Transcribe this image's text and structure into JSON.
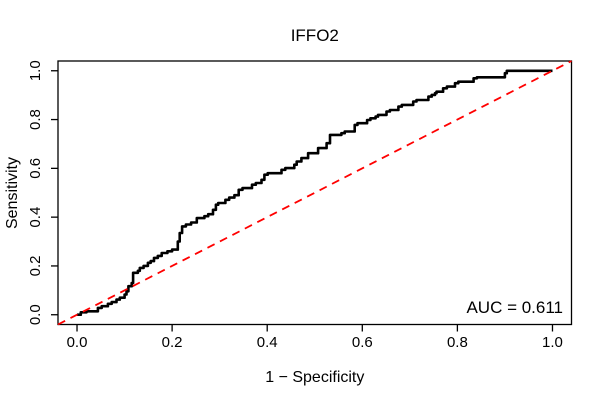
{
  "chart_data": {
    "type": "line",
    "title": "IFFO2",
    "xlabel": "1 − Specificity",
    "ylabel": "Sensitivity",
    "xlim": [
      -0.04,
      1.04
    ],
    "ylim": [
      -0.04,
      1.04
    ],
    "grid": false,
    "background": "#ffffff",
    "x_ticks": [
      0.0,
      0.2,
      0.4,
      0.6,
      0.8,
      1.0
    ],
    "y_ticks": [
      0.0,
      0.2,
      0.4,
      0.6,
      0.8,
      1.0
    ],
    "x_tick_labels": [
      "0.0",
      "0.2",
      "0.4",
      "0.6",
      "0.8",
      "1.0"
    ],
    "y_tick_labels": [
      "0.0",
      "0.2",
      "0.4",
      "0.6",
      "0.8",
      "1.0"
    ],
    "annotation": {
      "text": "AUC = 0.611",
      "x": 1.02,
      "y": 0.03,
      "align": "right"
    },
    "series": [
      {
        "name": "ROC curve",
        "color": "#000000",
        "style": "solid",
        "width": 2.6,
        "points": [
          [
            0.0,
            0.0
          ],
          [
            0.008,
            0.0
          ],
          [
            0.008,
            0.01
          ],
          [
            0.02,
            0.01
          ],
          [
            0.02,
            0.014
          ],
          [
            0.044,
            0.014
          ],
          [
            0.044,
            0.028
          ],
          [
            0.052,
            0.028
          ],
          [
            0.052,
            0.035
          ],
          [
            0.065,
            0.035
          ],
          [
            0.065,
            0.045
          ],
          [
            0.073,
            0.045
          ],
          [
            0.073,
            0.052
          ],
          [
            0.083,
            0.052
          ],
          [
            0.083,
            0.062
          ],
          [
            0.09,
            0.062
          ],
          [
            0.09,
            0.07
          ],
          [
            0.1,
            0.07
          ],
          [
            0.1,
            0.083
          ],
          [
            0.104,
            0.083
          ],
          [
            0.104,
            0.096
          ],
          [
            0.108,
            0.096
          ],
          [
            0.108,
            0.117
          ],
          [
            0.115,
            0.117
          ],
          [
            0.115,
            0.13
          ],
          [
            0.118,
            0.13
          ],
          [
            0.118,
            0.172
          ],
          [
            0.128,
            0.172
          ],
          [
            0.128,
            0.18
          ],
          [
            0.132,
            0.18
          ],
          [
            0.132,
            0.192
          ],
          [
            0.14,
            0.192
          ],
          [
            0.14,
            0.2
          ],
          [
            0.149,
            0.2
          ],
          [
            0.149,
            0.213
          ],
          [
            0.155,
            0.213
          ],
          [
            0.155,
            0.22
          ],
          [
            0.162,
            0.22
          ],
          [
            0.162,
            0.233
          ],
          [
            0.17,
            0.233
          ],
          [
            0.17,
            0.241
          ],
          [
            0.178,
            0.241
          ],
          [
            0.178,
            0.253
          ],
          [
            0.19,
            0.253
          ],
          [
            0.19,
            0.26
          ],
          [
            0.2,
            0.26
          ],
          [
            0.2,
            0.267
          ],
          [
            0.212,
            0.267
          ],
          [
            0.212,
            0.3
          ],
          [
            0.216,
            0.3
          ],
          [
            0.216,
            0.335
          ],
          [
            0.221,
            0.335
          ],
          [
            0.221,
            0.362
          ],
          [
            0.229,
            0.362
          ],
          [
            0.229,
            0.37
          ],
          [
            0.24,
            0.37
          ],
          [
            0.24,
            0.378
          ],
          [
            0.252,
            0.378
          ],
          [
            0.252,
            0.396
          ],
          [
            0.268,
            0.396
          ],
          [
            0.268,
            0.404
          ],
          [
            0.276,
            0.404
          ],
          [
            0.276,
            0.412
          ],
          [
            0.286,
            0.412
          ],
          [
            0.286,
            0.43
          ],
          [
            0.292,
            0.43
          ],
          [
            0.292,
            0.451
          ],
          [
            0.297,
            0.451
          ],
          [
            0.297,
            0.458
          ],
          [
            0.312,
            0.458
          ],
          [
            0.312,
            0.471
          ],
          [
            0.32,
            0.471
          ],
          [
            0.32,
            0.48
          ],
          [
            0.331,
            0.48
          ],
          [
            0.331,
            0.49
          ],
          [
            0.34,
            0.49
          ],
          [
            0.34,
            0.512
          ],
          [
            0.348,
            0.512
          ],
          [
            0.348,
            0.519
          ],
          [
            0.368,
            0.519
          ],
          [
            0.368,
            0.533
          ],
          [
            0.376,
            0.533
          ],
          [
            0.376,
            0.54
          ],
          [
            0.388,
            0.54
          ],
          [
            0.388,
            0.553
          ],
          [
            0.394,
            0.553
          ],
          [
            0.394,
            0.574
          ],
          [
            0.401,
            0.574
          ],
          [
            0.401,
            0.58
          ],
          [
            0.43,
            0.58
          ],
          [
            0.43,
            0.594
          ],
          [
            0.438,
            0.594
          ],
          [
            0.438,
            0.601
          ],
          [
            0.457,
            0.601
          ],
          [
            0.457,
            0.615
          ],
          [
            0.462,
            0.615
          ],
          [
            0.462,
            0.628
          ],
          [
            0.472,
            0.628
          ],
          [
            0.472,
            0.642
          ],
          [
            0.486,
            0.642
          ],
          [
            0.486,
            0.662
          ],
          [
            0.507,
            0.662
          ],
          [
            0.507,
            0.683
          ],
          [
            0.525,
            0.683
          ],
          [
            0.525,
            0.703
          ],
          [
            0.532,
            0.703
          ],
          [
            0.532,
            0.737
          ],
          [
            0.556,
            0.737
          ],
          [
            0.556,
            0.744
          ],
          [
            0.563,
            0.744
          ],
          [
            0.563,
            0.751
          ],
          [
            0.584,
            0.751
          ],
          [
            0.584,
            0.778
          ],
          [
            0.59,
            0.778
          ],
          [
            0.59,
            0.785
          ],
          [
            0.61,
            0.785
          ],
          [
            0.61,
            0.798
          ],
          [
            0.617,
            0.798
          ],
          [
            0.617,
            0.805
          ],
          [
            0.628,
            0.805
          ],
          [
            0.628,
            0.812
          ],
          [
            0.633,
            0.812
          ],
          [
            0.633,
            0.819
          ],
          [
            0.651,
            0.819
          ],
          [
            0.651,
            0.833
          ],
          [
            0.658,
            0.833
          ],
          [
            0.658,
            0.839
          ],
          [
            0.676,
            0.839
          ],
          [
            0.676,
            0.853
          ],
          [
            0.683,
            0.853
          ],
          [
            0.683,
            0.86
          ],
          [
            0.707,
            0.86
          ],
          [
            0.707,
            0.874
          ],
          [
            0.714,
            0.874
          ],
          [
            0.714,
            0.88
          ],
          [
            0.739,
            0.88
          ],
          [
            0.739,
            0.894
          ],
          [
            0.746,
            0.894
          ],
          [
            0.746,
            0.901
          ],
          [
            0.753,
            0.901
          ],
          [
            0.753,
            0.908
          ],
          [
            0.756,
            0.908
          ],
          [
            0.756,
            0.914
          ],
          [
            0.77,
            0.914
          ],
          [
            0.77,
            0.928
          ],
          [
            0.778,
            0.928
          ],
          [
            0.778,
            0.935
          ],
          [
            0.795,
            0.935
          ],
          [
            0.795,
            0.949
          ],
          [
            0.802,
            0.949
          ],
          [
            0.802,
            0.955
          ],
          [
            0.834,
            0.955
          ],
          [
            0.834,
            0.969
          ],
          [
            0.841,
            0.969
          ],
          [
            0.841,
            0.973
          ],
          [
            0.9,
            0.973
          ],
          [
            0.9,
            0.99
          ],
          [
            0.904,
            0.99
          ],
          [
            0.904,
            1.0
          ],
          [
            1.0,
            1.0
          ]
        ]
      },
      {
        "name": "reference diagonal",
        "color": "#ff0000",
        "style": "dashed",
        "width": 1.8,
        "points": [
          [
            -0.04,
            -0.04
          ],
          [
            1.04,
            1.04
          ]
        ]
      }
    ]
  }
}
